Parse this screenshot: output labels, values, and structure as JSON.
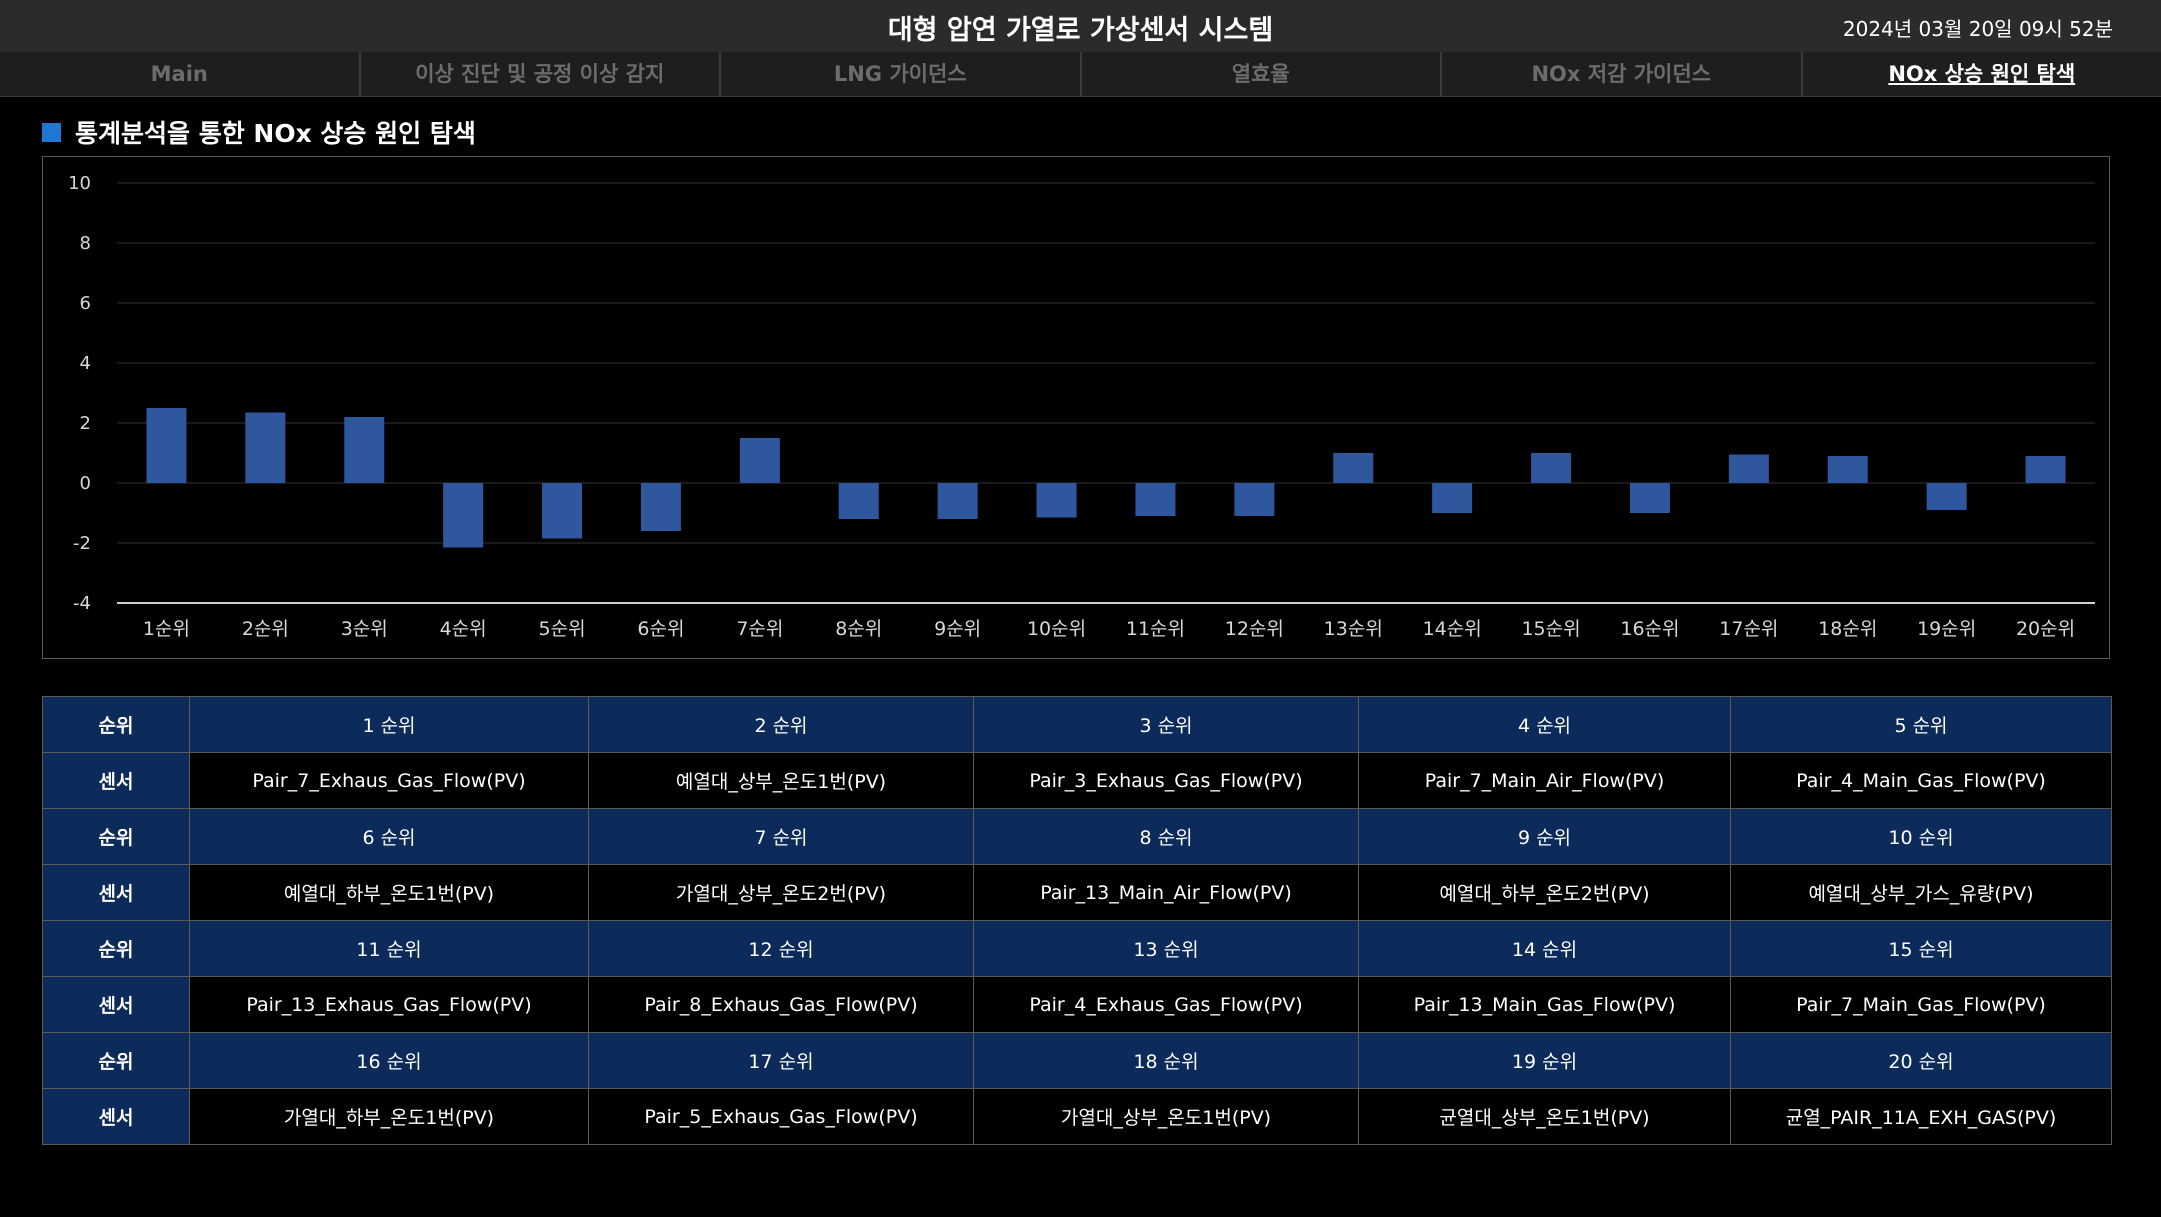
{
  "header": {
    "title": "대형 압연 가열로 가상센서 시스템",
    "datetime": "2024년 03월 20일 09시 52분"
  },
  "tabs": [
    {
      "label": "Main"
    },
    {
      "label": "이상 진단 및 공정 이상 감지"
    },
    {
      "label": "LNG 가이던스"
    },
    {
      "label": "열효율"
    },
    {
      "label": "NOx 저감 가이던스"
    },
    {
      "label": "NOx 상승 원인 탐색",
      "active": true
    }
  ],
  "section": {
    "title": "통계분석을 통한 NOx 상승 원인 탐색"
  },
  "colors": {
    "bar": "#2f579e",
    "accent": "#1f78d1",
    "table_rank_bg": "#0c2a5a"
  },
  "chart_data": {
    "type": "bar",
    "title": "",
    "xlabel": "",
    "ylabel": "",
    "categories": [
      "1순위",
      "2순위",
      "3순위",
      "4순위",
      "5순위",
      "6순위",
      "7순위",
      "8순위",
      "9순위",
      "10순위",
      "11순위",
      "12순위",
      "13순위",
      "14순위",
      "15순위",
      "16순위",
      "17순위",
      "18순위",
      "19순위",
      "20순위"
    ],
    "values": [
      2.5,
      2.35,
      2.2,
      -2.15,
      -1.85,
      -1.6,
      1.5,
      -1.2,
      -1.2,
      -1.15,
      -1.1,
      -1.1,
      1.0,
      -1.0,
      1.0,
      -1.0,
      0.95,
      0.9,
      -0.9,
      0.9
    ],
    "ylim": [
      -4,
      10
    ],
    "yticks": [
      10,
      8,
      6,
      4,
      2,
      0,
      -2,
      -4
    ],
    "grid": true
  },
  "table": {
    "row_header_rank": "순위",
    "row_header_sensor": "센서",
    "groups": [
      {
        "ranks": [
          "1 순위",
          "2 순위",
          "3 순위",
          "4 순위",
          "5 순위"
        ],
        "sensors": [
          "Pair_7_Exhaus_Gas_Flow(PV)",
          "예열대_상부_온도1번(PV)",
          "Pair_3_Exhaus_Gas_Flow(PV)",
          "Pair_7_Main_Air_Flow(PV)",
          "Pair_4_Main_Gas_Flow(PV)"
        ]
      },
      {
        "ranks": [
          "6 순위",
          "7 순위",
          "8 순위",
          "9 순위",
          "10 순위"
        ],
        "sensors": [
          "예열대_하부_온도1번(PV)",
          "가열대_상부_온도2번(PV)",
          "Pair_13_Main_Air_Flow(PV)",
          "예열대_하부_온도2번(PV)",
          "예열대_상부_가스_유량(PV)"
        ]
      },
      {
        "ranks": [
          "11 순위",
          "12 순위",
          "13 순위",
          "14 순위",
          "15 순위"
        ],
        "sensors": [
          "Pair_13_Exhaus_Gas_Flow(PV)",
          "Pair_8_Exhaus_Gas_Flow(PV)",
          "Pair_4_Exhaus_Gas_Flow(PV)",
          "Pair_13_Main_Gas_Flow(PV)",
          "Pair_7_Main_Gas_Flow(PV)"
        ]
      },
      {
        "ranks": [
          "16 순위",
          "17 순위",
          "18 순위",
          "19 순위",
          "20 순위"
        ],
        "sensors": [
          "가열대_하부_온도1번(PV)",
          "Pair_5_Exhaus_Gas_Flow(PV)",
          "가열대_상부_온도1번(PV)",
          "균열대_상부_온도1번(PV)",
          "균열_PAIR_11A_EXH_GAS(PV)"
        ]
      }
    ]
  }
}
